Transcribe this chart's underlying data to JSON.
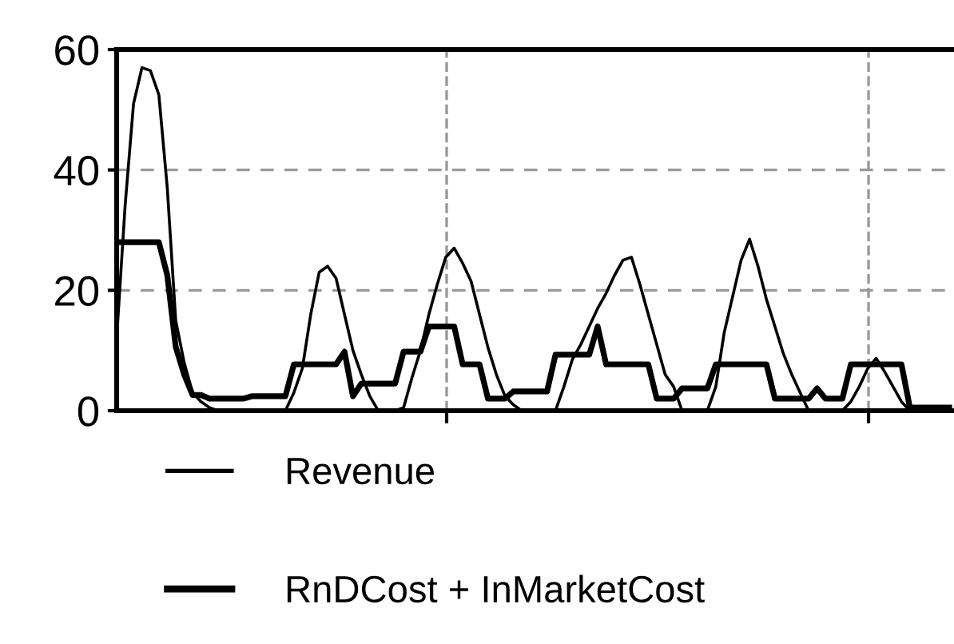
{
  "chart_data": {
    "type": "line",
    "categories": [
      null,
      null,
      null,
      null,
      null,
      null,
      null,
      null,
      null,
      null,
      null,
      null,
      null,
      null,
      null,
      null,
      null,
      null,
      null,
      null,
      null,
      null,
      null,
      null,
      null,
      null,
      null,
      null,
      null,
      null,
      null,
      null,
      null,
      null,
      null,
      null,
      null,
      null,
      null,
      null,
      null,
      null,
      null,
      null,
      null,
      null,
      null,
      null,
      null,
      null,
      null,
      null,
      null,
      null,
      null,
      null,
      null,
      null,
      null,
      null,
      null,
      null,
      null,
      null,
      null,
      null,
      null,
      null,
      null,
      null,
      null,
      null,
      null,
      null,
      null,
      null,
      null,
      null,
      null,
      null,
      null,
      null,
      null,
      null,
      null,
      null,
      null,
      null,
      null,
      null,
      null,
      null,
      null,
      null,
      null,
      null,
      null,
      null,
      null,
      null
    ],
    "ylim": [
      0,
      60
    ],
    "yticks": [
      0,
      20,
      40,
      60
    ],
    "grid": "y",
    "legend": "bottom",
    "marker": "none",
    "line_style": "solid",
    "series": [
      {
        "name": "Revenue",
        "color": "#000000",
        "values": [
          12,
          34,
          51,
          57,
          56.5,
          52.5,
          37,
          15,
          8,
          3,
          1.5,
          0.5,
          0,
          0,
          0,
          0,
          0,
          0,
          0,
          0,
          0,
          3,
          7,
          16,
          23,
          24,
          22,
          16,
          10,
          6,
          2.4,
          0,
          0,
          0,
          0.5,
          5.5,
          10,
          16,
          21,
          25.5,
          27,
          24.5,
          21.5,
          16,
          10.5,
          6,
          2.5,
          1,
          0,
          0,
          0,
          0,
          0,
          4,
          8.5,
          11,
          14,
          17,
          19.5,
          22.5,
          25,
          25.5,
          21,
          16,
          11,
          6,
          4,
          0,
          0,
          0,
          0,
          4,
          13,
          19,
          25,
          28.5,
          24,
          18.5,
          14,
          9.5,
          6,
          3,
          0,
          0,
          0,
          0,
          0,
          1.5,
          4,
          7,
          8.7,
          6.5,
          4,
          1.5,
          0,
          0,
          0,
          0,
          0,
          0
        ]
      },
      {
        "name": "RnDCost + InMarketCost",
        "color": "#000000",
        "values": [
          28,
          28,
          28,
          28,
          28,
          28,
          22.5,
          10.6,
          6,
          2.6,
          2.6,
          2,
          2,
          2,
          2,
          2,
          2.4,
          2.4,
          2.4,
          2.4,
          2.4,
          7.7,
          7.7,
          7.7,
          7.7,
          7.7,
          7.7,
          9.8,
          2.4,
          4.5,
          4.5,
          4.5,
          4.5,
          4.5,
          9.8,
          9.8,
          9.8,
          14,
          14,
          14,
          14,
          7.7,
          7.7,
          7.7,
          2,
          2,
          2,
          3.2,
          3.2,
          3.2,
          3.2,
          3.2,
          9.3,
          9.3,
          9.3,
          9.3,
          9.3,
          14,
          7.7,
          7.7,
          7.7,
          7.7,
          7.7,
          7.7,
          2,
          2,
          2,
          3.7,
          3.7,
          3.7,
          3.7,
          7.7,
          7.7,
          7.7,
          7.7,
          7.7,
          7.7,
          7.7,
          2,
          2,
          2,
          2,
          2,
          3.7,
          2,
          2,
          2,
          7.7,
          7.7,
          7.7,
          7.7,
          7.7,
          7.7,
          7.7,
          0.5,
          0.5,
          0.5,
          0.5,
          0.5,
          0.5
        ]
      }
    ]
  }
}
